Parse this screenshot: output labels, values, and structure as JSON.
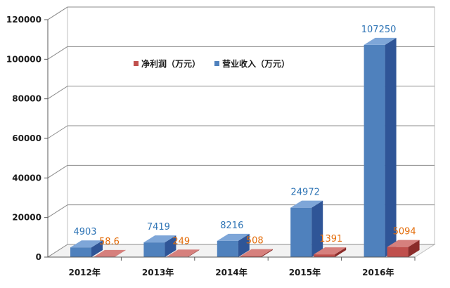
{
  "chart_data": {
    "type": "bar",
    "categories": [
      "2012年",
      "2013年",
      "2014年",
      "2015年",
      "2016年"
    ],
    "series": [
      {
        "name": "营业收入（万元）",
        "values": [
          4903,
          7419,
          8216,
          24972,
          107250
        ],
        "color": "#4f81bd",
        "label_color": "#2e74b5"
      },
      {
        "name": "净利润（万元）",
        "values": [
          58.6,
          249,
          508,
          1391,
          5094
        ],
        "color": "#c0504d",
        "label_color": "#e36c09"
      }
    ],
    "data_labels": {
      "revenue": [
        "4903",
        "7419",
        "8216",
        "24972",
        "107250"
      ],
      "profit": [
        "58.6",
        "249",
        "508",
        "1391",
        "5094"
      ]
    },
    "ylim": [
      0,
      120000
    ],
    "yticks": [
      "0",
      "20000",
      "40000",
      "60000",
      "80000",
      "100000",
      "120000"
    ],
    "grid": true,
    "style": "3d",
    "legend_position": "upper-left-inside"
  }
}
